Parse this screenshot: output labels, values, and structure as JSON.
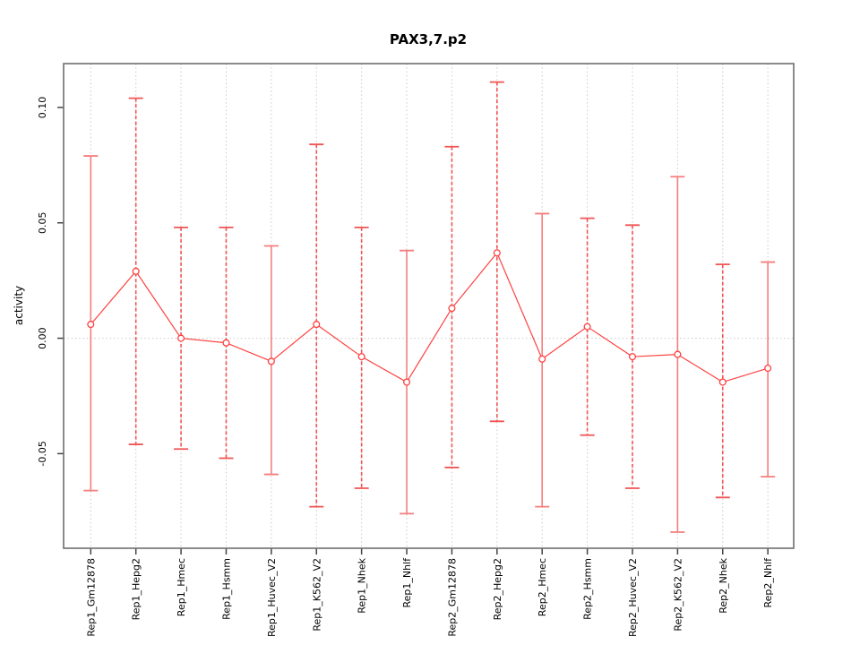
{
  "title": "PAX3,7.p2",
  "colors": {
    "errorbar": "#f57e7e",
    "errorbar_dashed": "#f05555",
    "mean_line": "#ff4040",
    "point_stroke": "#ff4040",
    "grid": "#c9c9c9",
    "border": "#6e6e6e",
    "text": "#000000",
    "background": "#ffffff"
  },
  "chart_data": {
    "type": "line",
    "subtype": "errorbar",
    "title": "PAX3,7.p2",
    "xlabel": "",
    "ylabel": "activity",
    "legend": "none",
    "grid": "dotted vertical line per category and dotted horizontal line at y=0",
    "categories": [
      "Rep1_Gm12878",
      "Rep1_Hepg2",
      "Rep1_Hmec",
      "Rep1_Hsmm",
      "Rep1_Huvec_V2",
      "Rep1_K562_V2",
      "Rep1_Nhek",
      "Rep1_Nhlf",
      "Rep2_Gm12878",
      "Rep2_Hepg2",
      "Rep2_Hmec",
      "Rep2_Hsmm",
      "Rep2_Huvec_V2",
      "Rep2_K562_V2",
      "Rep2_Nhek",
      "Rep2_Nhlf"
    ],
    "series": [
      {
        "name": "mean",
        "values": [
          0.006,
          0.029,
          0.0,
          -0.002,
          -0.01,
          0.006,
          -0.008,
          -0.019,
          0.013,
          0.037,
          -0.009,
          0.005,
          -0.008,
          -0.007,
          -0.019,
          -0.013
        ]
      },
      {
        "name": "upper",
        "values": [
          0.079,
          0.104,
          0.048,
          0.048,
          0.04,
          0.084,
          0.048,
          0.038,
          0.083,
          0.111,
          0.054,
          0.052,
          0.049,
          0.07,
          0.032,
          0.033
        ]
      },
      {
        "name": "lower",
        "values": [
          -0.066,
          -0.046,
          -0.048,
          -0.052,
          -0.059,
          -0.073,
          -0.065,
          -0.076,
          -0.056,
          -0.036,
          -0.073,
          -0.042,
          -0.065,
          -0.084,
          -0.069,
          -0.06
        ]
      }
    ],
    "bar_styles": [
      "solid",
      "dashed",
      "dashed",
      "dashed",
      "solid",
      "dashed",
      "dashed",
      "solid",
      "dashed",
      "dashed",
      "solid",
      "dashed",
      "dashed",
      "solid",
      "dashed",
      "solid"
    ],
    "yticks": [
      0.1,
      0.05,
      0.0,
      -0.05
    ],
    "ytick_labels": [
      "0.10",
      "0.05",
      "0.00",
      "-0.05"
    ],
    "ylim": [
      -0.091,
      0.119
    ]
  }
}
